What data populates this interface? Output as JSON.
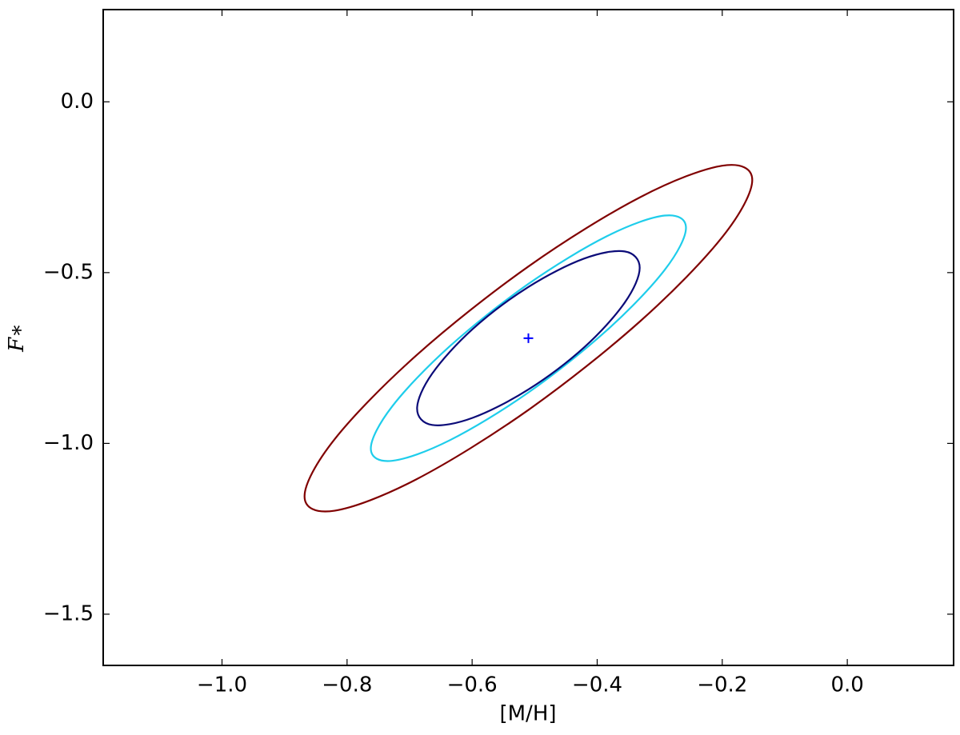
{
  "chart_data": {
    "type": "contour",
    "x_label": "[M/H]",
    "y_label": "F∗",
    "xlim": [
      -1.19,
      0.17
    ],
    "ylim": [
      -1.65,
      0.27
    ],
    "xticks": [
      {
        "value": -1.0,
        "label": "−1.0"
      },
      {
        "value": -0.8,
        "label": "−0.8"
      },
      {
        "value": -0.6,
        "label": "−0.6"
      },
      {
        "value": -0.4,
        "label": "−0.4"
      },
      {
        "value": -0.2,
        "label": "−0.2"
      },
      {
        "value": 0.0,
        "label": "0.0"
      }
    ],
    "yticks": [
      {
        "value": 0.0,
        "label": "0.0"
      },
      {
        "value": -0.5,
        "label": "−0.5"
      },
      {
        "value": -1.0,
        "label": "−1.0"
      },
      {
        "value": -1.5,
        "label": "−1.5"
      }
    ],
    "series": [
      {
        "color": "#800000",
        "x": [
          -0.152,
          -0.2,
          -0.331,
          -0.51,
          -0.689,
          -0.82,
          -0.868,
          -0.82,
          -0.689,
          -0.51,
          -0.331,
          -0.2
        ],
        "y": [
          -0.229,
          -0.187,
          -0.279,
          -0.482,
          -0.742,
          -0.988,
          -1.155,
          -1.197,
          -1.105,
          -0.902,
          -0.642,
          -0.396
        ]
      },
      {
        "color": "#1ecdeb",
        "x": [
          -0.258,
          -0.292,
          -0.384,
          -0.51,
          -0.636,
          -0.728,
          -0.762,
          -0.728,
          -0.636,
          -0.51,
          -0.384,
          -0.292
        ],
        "y": [
          -0.369,
          -0.333,
          -0.393,
          -0.533,
          -0.716,
          -0.892,
          -1.015,
          -1.051,
          -0.991,
          -0.851,
          -0.668,
          -0.492
        ]
      },
      {
        "color": "#0b0b78",
        "x": [
          -0.332,
          -0.356,
          -0.421,
          -0.51,
          -0.599,
          -0.664,
          -0.688,
          -0.664,
          -0.599,
          -0.51,
          -0.421,
          -0.356
        ],
        "y": [
          -0.486,
          -0.438,
          -0.459,
          -0.542,
          -0.665,
          -0.796,
          -0.898,
          -0.946,
          -0.925,
          -0.842,
          -0.719,
          -0.588
        ]
      }
    ],
    "best_fit": {
      "x": -0.51,
      "y": -0.692,
      "color": "#0000ff"
    }
  }
}
